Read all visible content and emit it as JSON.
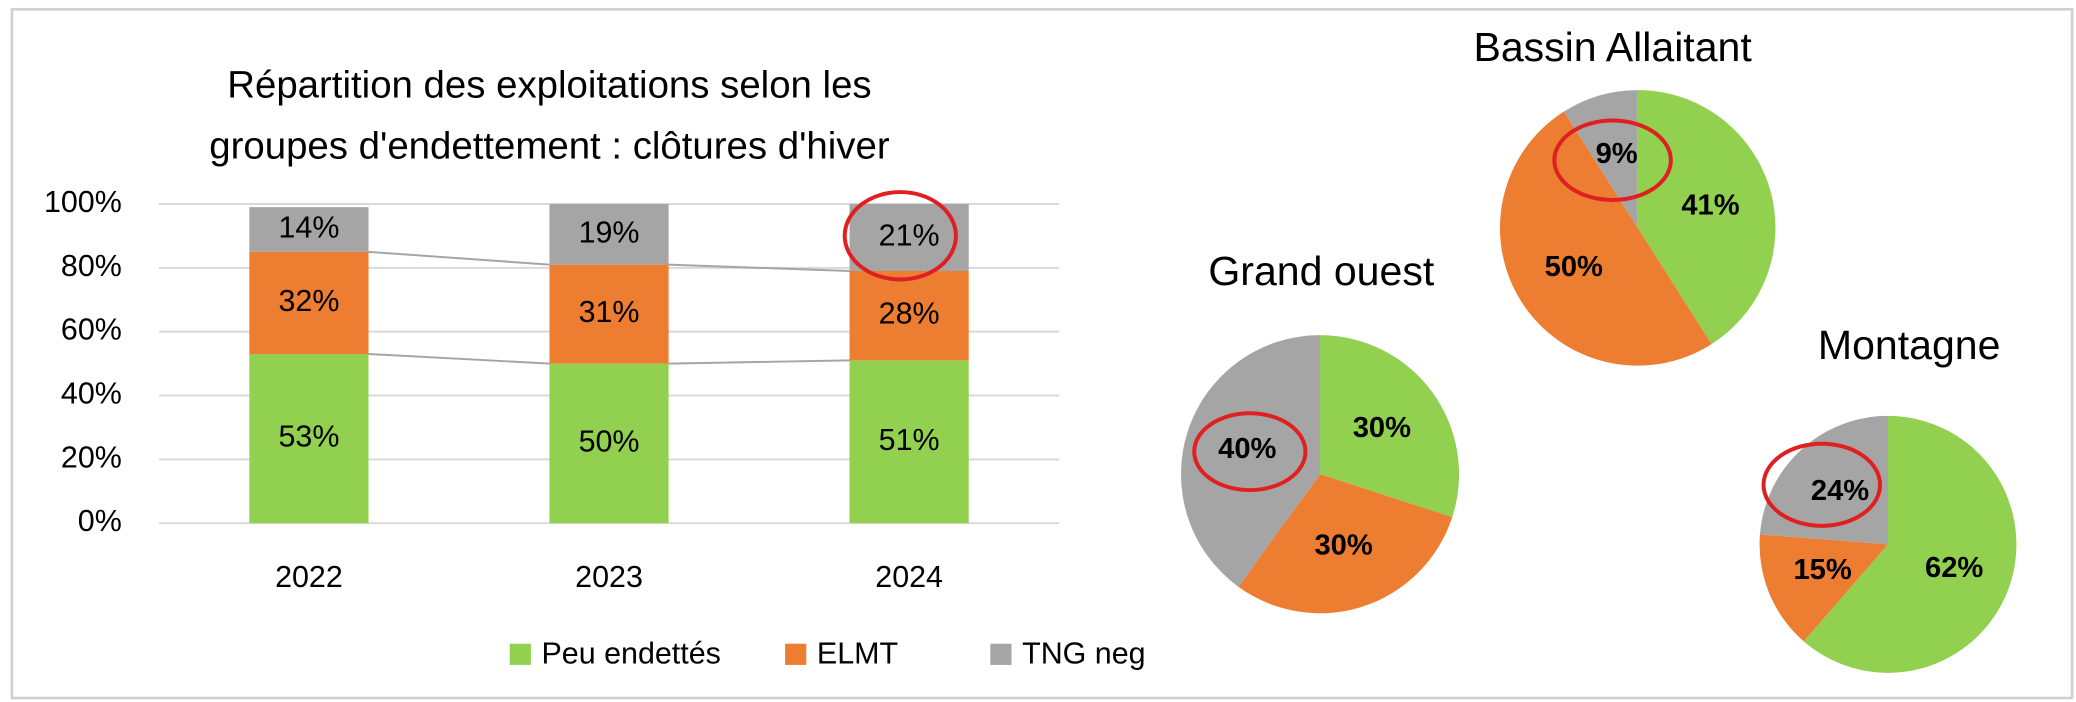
{
  "chart_data": [
    {
      "type": "bar",
      "stacked": true,
      "title": [
        "Répartition des exploitations selon les",
        "groupes d'endettement : clôtures d'hiver"
      ],
      "categories": [
        "2022",
        "2023",
        "2024"
      ],
      "series": [
        {
          "name": "Peu endettés",
          "color": "#92d050",
          "values": [
            53,
            50,
            51
          ],
          "value_labels": [
            "53%",
            "50%",
            "51%"
          ]
        },
        {
          "name": "ELMT",
          "color": "#ed7d31",
          "values": [
            32,
            31,
            28
          ],
          "value_labels": [
            "32%",
            "31%",
            "28%"
          ]
        },
        {
          "name": "TNG neg",
          "color": "#a5a5a5",
          "values": [
            14,
            19,
            21
          ],
          "value_labels": [
            "14%",
            "19%",
            "21%"
          ]
        }
      ],
      "ylim": [
        0,
        100
      ],
      "yticks": [
        {
          "value": 0,
          "label": "0%"
        },
        {
          "value": 20,
          "label": "20%"
        },
        {
          "value": 40,
          "label": "40%"
        },
        {
          "value": 60,
          "label": "60%"
        },
        {
          "value": 80,
          "label": "80%"
        },
        {
          "value": 100,
          "label": "100%"
        }
      ],
      "grid": true,
      "legend": "bottom"
    },
    {
      "type": "pie",
      "title": "Bassin Allaitant",
      "values": [
        41,
        50,
        9
      ],
      "value_labels": [
        "41%",
        "50%",
        "9%"
      ],
      "colors": [
        "#92d050",
        "#ed7d31",
        "#a5a5a5"
      ]
    },
    {
      "type": "pie",
      "title": "Grand ouest",
      "values": [
        30,
        30,
        40
      ],
      "value_labels": [
        "30%",
        "30%",
        "40%"
      ],
      "colors": [
        "#92d050",
        "#ed7d31",
        "#a5a5a5"
      ]
    },
    {
      "type": "pie",
      "title": "Montagne",
      "values": [
        62,
        15,
        24
      ],
      "value_labels": [
        "62%",
        "15%",
        "24%"
      ],
      "colors": [
        "#92d050",
        "#ed7d31",
        "#a5a5a5"
      ]
    }
  ]
}
